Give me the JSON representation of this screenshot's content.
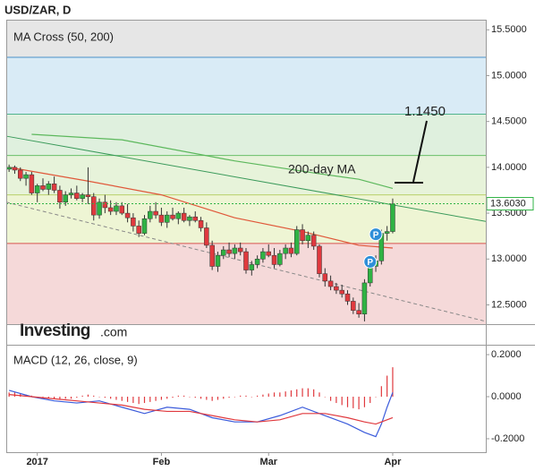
{
  "title": "USD/ZAR, D",
  "watermark": {
    "brand": "Investing",
    "suffix": ".com"
  },
  "chart_data": [
    {
      "type": "candlestick",
      "title": "MA Cross (50, 200)",
      "up_color": "#2fb344",
      "down_color": "#e0393e",
      "xlim": [
        -0.5,
        84.5
      ],
      "ylim": [
        12.29,
        15.61
      ],
      "yticks": [
        {
          "value": 15.5,
          "label": "15.5000"
        },
        {
          "value": 15.0,
          "label": "15.0000"
        },
        {
          "value": 14.5,
          "label": "14.5000"
        },
        {
          "value": 14.0,
          "label": "14.0000"
        },
        {
          "value": 13.5,
          "label": "13.5000"
        },
        {
          "value": 13.0,
          "label": "13.0000"
        },
        {
          "value": 12.5,
          "label": "12.5000"
        }
      ],
      "background": "#e6e6e6",
      "levels": [
        {
          "value": 15.2,
          "color": "#4a90c8",
          "fill": "#d9ebf6"
        },
        {
          "value": 14.58,
          "color": "#4fb38e",
          "fill": "#dff0de"
        },
        {
          "value": 14.13,
          "color": "#6abf6a",
          "fill": "#e7f3da"
        },
        {
          "value": 13.7,
          "color": "#b9cf6a",
          "fill": "#eef5d4"
        },
        {
          "value": 13.17,
          "color": "#d9534f",
          "fill": "#f5d9d9"
        }
      ],
      "ohlc": [
        [
          13.98,
          14.03,
          13.95,
          14.0
        ],
        [
          14.0,
          14.02,
          13.93,
          13.97
        ],
        [
          13.97,
          14.0,
          13.85,
          13.88
        ],
        [
          13.88,
          13.95,
          13.8,
          13.92
        ],
        [
          13.92,
          13.95,
          13.7,
          13.72
        ],
        [
          13.72,
          13.82,
          13.62,
          13.8
        ],
        [
          13.8,
          13.88,
          13.74,
          13.76
        ],
        [
          13.76,
          13.85,
          13.7,
          13.82
        ],
        [
          13.82,
          13.9,
          13.72,
          13.75
        ],
        [
          13.75,
          13.8,
          13.55,
          13.62
        ],
        [
          13.62,
          13.74,
          13.58,
          13.7
        ],
        [
          13.7,
          13.77,
          13.66,
          13.72
        ],
        [
          13.72,
          13.8,
          13.64,
          13.66
        ],
        [
          13.66,
          13.72,
          13.62,
          13.7
        ],
        [
          13.7,
          14.0,
          13.6,
          13.68
        ],
        [
          13.68,
          13.72,
          13.42,
          13.48
        ],
        [
          13.48,
          13.66,
          13.44,
          13.62
        ],
        [
          13.62,
          13.7,
          13.5,
          13.56
        ],
        [
          13.56,
          13.64,
          13.48,
          13.52
        ],
        [
          13.52,
          13.62,
          13.48,
          13.58
        ],
        [
          13.58,
          13.62,
          13.48,
          13.5
        ],
        [
          13.5,
          13.6,
          13.4,
          13.45
        ],
        [
          13.45,
          13.5,
          13.3,
          13.36
        ],
        [
          13.36,
          13.42,
          13.24,
          13.28
        ],
        [
          13.28,
          13.48,
          13.26,
          13.44
        ],
        [
          13.44,
          13.58,
          13.4,
          13.52
        ],
        [
          13.52,
          13.62,
          13.44,
          13.48
        ],
        [
          13.48,
          13.56,
          13.36,
          13.4
        ],
        [
          13.4,
          13.52,
          13.34,
          13.48
        ],
        [
          13.48,
          13.56,
          13.42,
          13.44
        ],
        [
          13.44,
          13.52,
          13.38,
          13.5
        ],
        [
          13.5,
          13.56,
          13.4,
          13.42
        ],
        [
          13.42,
          13.48,
          13.36,
          13.46
        ],
        [
          13.46,
          13.52,
          13.4,
          13.42
        ],
        [
          13.42,
          13.46,
          13.3,
          13.34
        ],
        [
          13.34,
          13.4,
          13.12,
          13.15
        ],
        [
          13.15,
          13.2,
          12.88,
          12.92
        ],
        [
          12.92,
          13.08,
          12.86,
          13.04
        ],
        [
          13.04,
          13.14,
          13.0,
          13.1
        ],
        [
          13.1,
          13.18,
          13.02,
          13.06
        ],
        [
          13.06,
          13.16,
          13.0,
          13.12
        ],
        [
          13.12,
          13.18,
          13.04,
          13.08
        ],
        [
          13.08,
          13.12,
          12.84,
          12.88
        ],
        [
          12.88,
          12.98,
          12.82,
          12.94
        ],
        [
          12.94,
          13.04,
          12.9,
          13.0
        ],
        [
          13.0,
          13.12,
          12.96,
          13.08
        ],
        [
          13.08,
          13.16,
          13.02,
          13.04
        ],
        [
          13.04,
          13.12,
          12.9,
          12.94
        ],
        [
          12.94,
          13.1,
          12.92,
          13.06
        ],
        [
          13.06,
          13.16,
          13.0,
          13.12
        ],
        [
          13.12,
          13.18,
          13.02,
          13.06
        ],
        [
          13.06,
          13.36,
          13.04,
          13.32
        ],
        [
          13.32,
          13.38,
          13.16,
          13.2
        ],
        [
          13.2,
          13.3,
          13.12,
          13.26
        ],
        [
          13.26,
          13.3,
          13.1,
          13.14
        ],
        [
          13.14,
          13.16,
          12.8,
          12.84
        ],
        [
          12.84,
          12.9,
          12.7,
          12.76
        ],
        [
          12.76,
          12.82,
          12.66,
          12.7
        ],
        [
          12.7,
          12.74,
          12.62,
          12.66
        ],
        [
          12.66,
          12.72,
          12.58,
          12.62
        ],
        [
          12.62,
          12.66,
          12.5,
          12.54
        ],
        [
          12.54,
          12.58,
          12.4,
          12.44
        ],
        [
          12.44,
          12.52,
          12.36,
          12.4
        ],
        [
          12.4,
          12.78,
          12.32,
          12.74
        ],
        [
          12.74,
          12.96,
          12.7,
          12.92
        ],
        [
          12.92,
          13.04,
          12.86,
          12.98
        ],
        [
          12.98,
          13.32,
          12.94,
          13.28
        ],
        [
          13.28,
          13.36,
          13.2,
          13.3
        ],
        [
          13.3,
          13.66,
          13.28,
          13.6
        ]
      ],
      "series": [
        {
          "color": "#5cb85c",
          "x": [
            4,
            20,
            40,
            55,
            62,
            68
          ],
          "values": [
            14.36,
            14.3,
            14.07,
            13.93,
            13.87,
            13.77
          ]
        },
        {
          "color": "#e0583a",
          "x": [
            0,
            14,
            27,
            40,
            52,
            62,
            68
          ],
          "values": [
            14.0,
            13.85,
            13.7,
            13.45,
            13.3,
            13.15,
            13.12
          ]
        }
      ],
      "trendlines": [
        {
          "color": "#3a9a5a",
          "dash": false,
          "x": [
            -0.5,
            84.5
          ],
          "values": [
            14.34,
            13.41
          ]
        },
        {
          "color": "#888888",
          "dash": true,
          "x": [
            -0.5,
            84.5
          ],
          "values": [
            13.62,
            12.32
          ]
        }
      ],
      "markers": [
        {
          "x": 64,
          "value": 12.97,
          "label": "P"
        },
        {
          "x": 65,
          "value": 13.27,
          "label": "P"
        }
      ],
      "last_price": {
        "value": 13.603,
        "label": "13.6030",
        "color": "#2fb344"
      },
      "annotations": [
        {
          "text": "200-day MA"
        },
        {
          "text": "1.1450"
        }
      ]
    },
    {
      "type": "macd",
      "title": "MACD (12, 26, close, 9)",
      "xlim": [
        -0.5,
        84.5
      ],
      "ylim": [
        -0.264,
        0.247
      ],
      "yticks": [
        {
          "value": 0.2,
          "label": "0.2000"
        },
        {
          "value": 0,
          "label": "0.0000"
        },
        {
          "value": -0.2,
          "label": "-0.2000"
        }
      ],
      "xticks": [
        {
          "value": 5,
          "label": "2017"
        },
        {
          "value": 27,
          "label": "Feb"
        },
        {
          "value": 46,
          "label": "Mar"
        },
        {
          "value": 68,
          "label": "Apr"
        }
      ],
      "series": [
        {
          "color": "#3b5bdb",
          "x": [
            0,
            4,
            8,
            12,
            16,
            20,
            24,
            28,
            32,
            36,
            40,
            44,
            48,
            52,
            56,
            60,
            63,
            65,
            66,
            67,
            68
          ],
          "values": [
            0.03,
            0.0,
            -0.02,
            -0.03,
            -0.02,
            -0.05,
            -0.08,
            -0.05,
            -0.06,
            -0.1,
            -0.12,
            -0.12,
            -0.09,
            -0.05,
            -0.09,
            -0.13,
            -0.17,
            -0.19,
            -0.13,
            -0.05,
            0.02
          ]
        },
        {
          "color": "#e0393e",
          "x": [
            0,
            4,
            8,
            12,
            16,
            20,
            24,
            28,
            32,
            36,
            40,
            44,
            48,
            52,
            56,
            60,
            63,
            65,
            66,
            67,
            68
          ],
          "values": [
            0.01,
            0.0,
            -0.01,
            -0.02,
            -0.03,
            -0.04,
            -0.06,
            -0.07,
            -0.07,
            -0.09,
            -0.11,
            -0.12,
            -0.11,
            -0.08,
            -0.08,
            -0.1,
            -0.12,
            -0.13,
            -0.12,
            -0.11,
            -0.1
          ]
        }
      ],
      "histogram_color": "#e0393e",
      "histogram": [
        0.02,
        0.02,
        0.015,
        0.01,
        0.005,
        0.0,
        -0.005,
        -0.01,
        -0.01,
        -0.015,
        -0.01,
        -0.01,
        -0.005,
        0.005,
        0.01,
        0.005,
        0.0,
        -0.005,
        -0.01,
        -0.015,
        -0.02,
        -0.025,
        -0.03,
        -0.035,
        -0.03,
        -0.025,
        -0.02,
        -0.015,
        -0.01,
        -0.005,
        0.005,
        0.005,
        0.0,
        -0.005,
        -0.01,
        -0.015,
        -0.02,
        -0.015,
        -0.01,
        -0.005,
        0.0,
        0.005,
        0.005,
        0.0,
        0.005,
        0.01,
        0.015,
        0.02,
        0.02,
        0.025,
        0.03,
        0.035,
        0.04,
        0.04,
        0.035,
        0.02,
        0.0,
        -0.02,
        -0.03,
        -0.04,
        -0.05,
        -0.055,
        -0.06,
        -0.05,
        -0.03,
        0.0,
        0.05,
        0.1,
        0.14
      ]
    }
  ]
}
